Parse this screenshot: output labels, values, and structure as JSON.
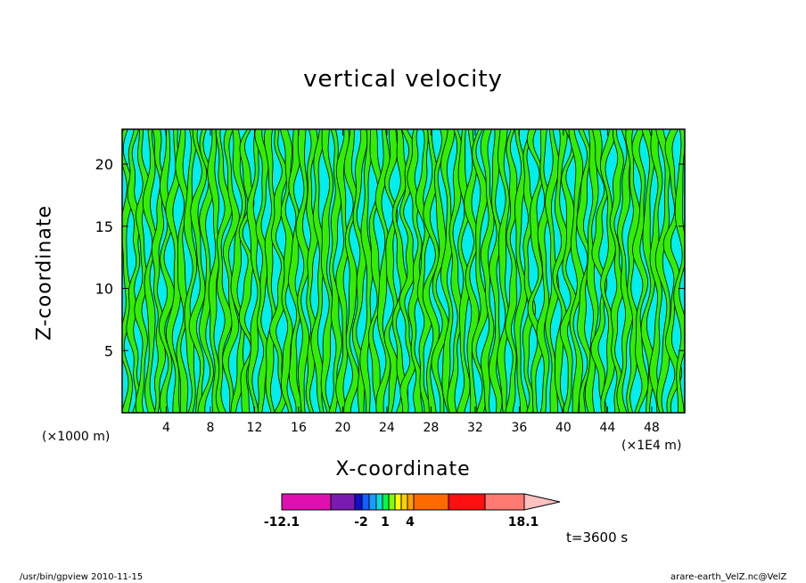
{
  "chart_data": {
    "type": "heatmap",
    "title": "vertical velocity",
    "xlabel": "X-coordinate",
    "ylabel": "Z-coordinate",
    "x_unit_left": "(×1000 m)",
    "x_unit_right": "(×1E4 m)",
    "xlim": [
      0,
      51
    ],
    "ylim": [
      0,
      22.8
    ],
    "x_ticks": [
      4,
      8,
      12,
      16,
      20,
      24,
      28,
      32,
      36,
      40,
      44,
      48
    ],
    "y_ticks": [
      5,
      10,
      15,
      20
    ],
    "colorbar": {
      "labels": [
        "-12.1",
        "-2",
        "1",
        "4",
        "18.1"
      ],
      "label_values": [
        -12.1,
        -2,
        1,
        4,
        18.1
      ],
      "range": [
        -12.1,
        18.1
      ],
      "colors": [
        "#e010b0",
        "#7a1ab0",
        "#1010c8",
        "#1060ff",
        "#10a0ff",
        "#00e0e0",
        "#00ff40",
        "#80ff00",
        "#ffff00",
        "#ffd000",
        "#ffa000",
        "#ff6a00",
        "#ff1010",
        "#ff7a70",
        "#ffc0c0"
      ],
      "extend": "max"
    },
    "fill_colors": {
      "positive": "#33ee00",
      "negative": "#00eeee"
    }
  },
  "annotation": "t=3600 s",
  "footer": {
    "left": "/usr/bin/gpview   2010-11-15",
    "right": "arare-earth_VelZ.nc@VelZ"
  }
}
